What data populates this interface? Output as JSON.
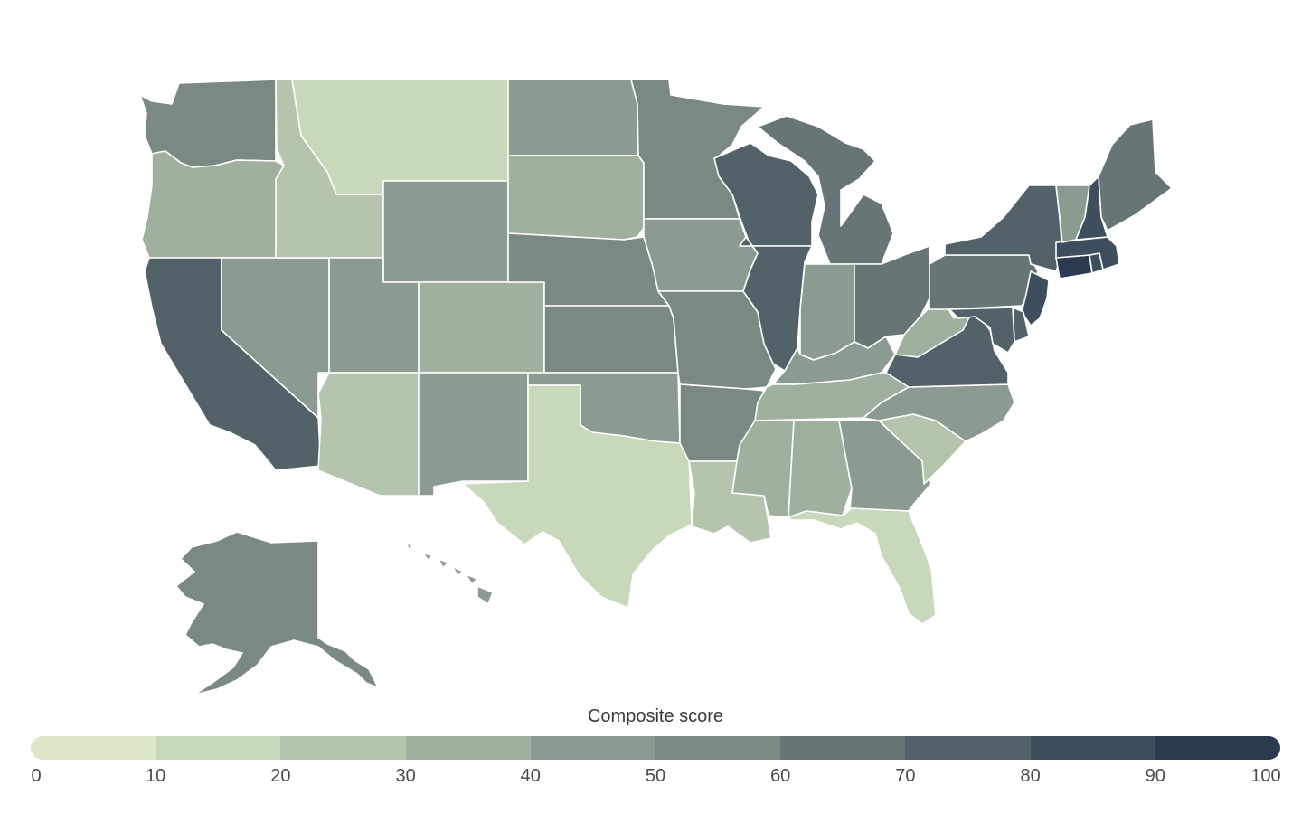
{
  "legend": {
    "title": "Composite score",
    "ticks": [
      "0",
      "10",
      "20",
      "30",
      "40",
      "50",
      "60",
      "70",
      "80",
      "90",
      "100"
    ],
    "colors": [
      "#dce8c8",
      "#c8d8bb",
      "#b4c4ad",
      "#a0b09e",
      "#8c9b90",
      "#7a8a83",
      "#677576",
      "#536169",
      "#3f4e5c",
      "#2b3a4e"
    ]
  },
  "states": [
    {
      "id": "WA",
      "score": 55
    },
    {
      "id": "OR",
      "score": 35
    },
    {
      "id": "CA",
      "score": 75
    },
    {
      "id": "NV",
      "score": 45
    },
    {
      "id": "ID",
      "score": 25
    },
    {
      "id": "MT",
      "score": 15
    },
    {
      "id": "WY",
      "score": 45
    },
    {
      "id": "UT",
      "score": 45
    },
    {
      "id": "AZ",
      "score": 25
    },
    {
      "id": "CO",
      "score": 35
    },
    {
      "id": "NM",
      "score": 45
    },
    {
      "id": "ND",
      "score": 45
    },
    {
      "id": "SD",
      "score": 35
    },
    {
      "id": "NE",
      "score": 55
    },
    {
      "id": "KS",
      "score": 55
    },
    {
      "id": "OK",
      "score": 45
    },
    {
      "id": "TX",
      "score": 15
    },
    {
      "id": "MN",
      "score": 55
    },
    {
      "id": "IA",
      "score": 45
    },
    {
      "id": "MO",
      "score": 55
    },
    {
      "id": "AR",
      "score": 55
    },
    {
      "id": "LA",
      "score": 25
    },
    {
      "id": "WI",
      "score": 75
    },
    {
      "id": "IL",
      "score": 75
    },
    {
      "id": "MI",
      "score": 65
    },
    {
      "id": "IN",
      "score": 45
    },
    {
      "id": "OH",
      "score": 65
    },
    {
      "id": "KY",
      "score": 45
    },
    {
      "id": "TN",
      "score": 35
    },
    {
      "id": "MS",
      "score": 35
    },
    {
      "id": "AL",
      "score": 35
    },
    {
      "id": "GA",
      "score": 45
    },
    {
      "id": "FL",
      "score": 15
    },
    {
      "id": "SC",
      "score": 25
    },
    {
      "id": "NC",
      "score": 45
    },
    {
      "id": "VA",
      "score": 75
    },
    {
      "id": "WV",
      "score": 35
    },
    {
      "id": "PA",
      "score": 65
    },
    {
      "id": "NY",
      "score": 75
    },
    {
      "id": "NJ",
      "score": 85
    },
    {
      "id": "DE",
      "score": 75
    },
    {
      "id": "MD",
      "score": 75
    },
    {
      "id": "CT",
      "score": 95
    },
    {
      "id": "RI",
      "score": 85
    },
    {
      "id": "MA",
      "score": 85
    },
    {
      "id": "VT",
      "score": 45
    },
    {
      "id": "NH",
      "score": 85
    },
    {
      "id": "ME",
      "score": 65
    },
    {
      "id": "AK",
      "score": 55
    },
    {
      "id": "HI",
      "score": 45
    }
  ]
}
